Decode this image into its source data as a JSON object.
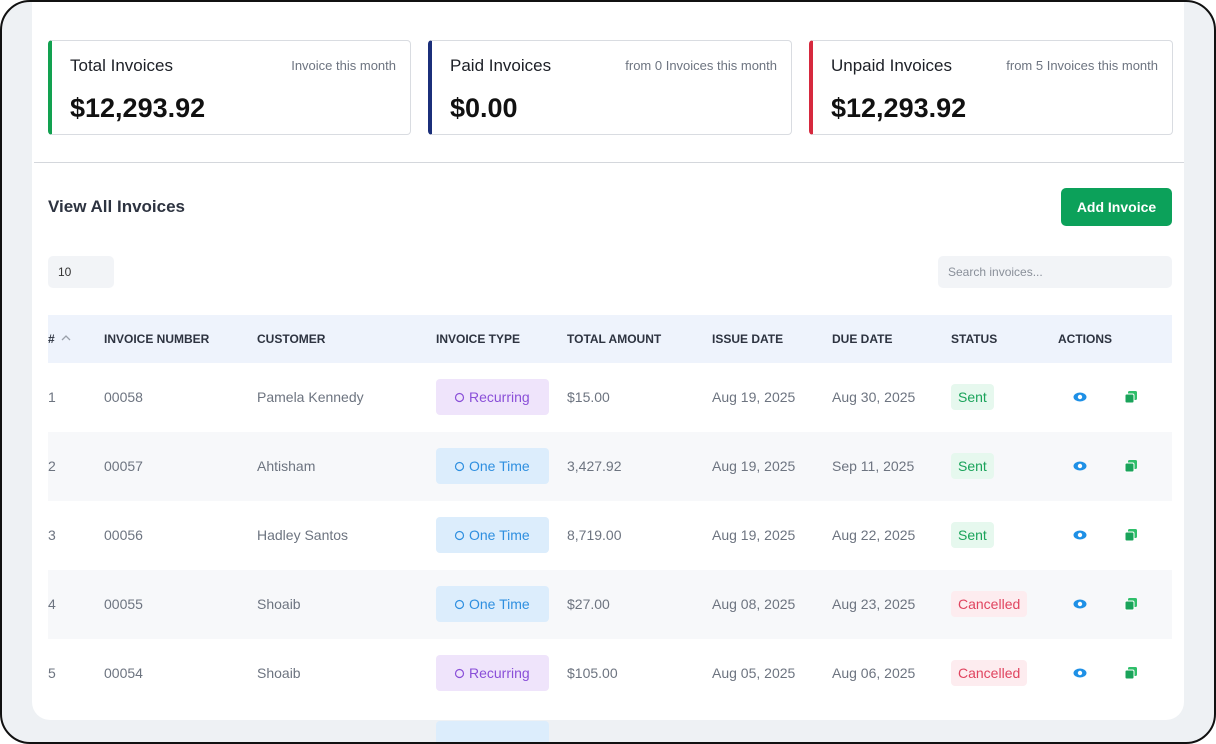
{
  "cards": [
    {
      "title": "Total Invoices",
      "note": "Invoice this month",
      "amount": "$12,293.92"
    },
    {
      "title": "Paid Invoices",
      "note": "from 0 Invoices this month",
      "amount": "$0.00"
    },
    {
      "title": "Unpaid Invoices",
      "note": "from 5 Invoices this month",
      "amount": "$12,293.92"
    }
  ],
  "section_title": "View All Invoices",
  "add_button": "Add Invoice",
  "page_size": "10",
  "search_placeholder": "Search invoices...",
  "table": {
    "headers": [
      "#",
      "INVOICE NUMBER",
      "CUSTOMER",
      "INVOICE TYPE",
      "TOTAL AMOUNT",
      "ISSUE DATE",
      "DUE DATE",
      "STATUS",
      "ACTIONS"
    ],
    "rows": [
      [
        "1",
        "00058",
        "Pamela Kennedy",
        "Recurring",
        "$15.00",
        "Aug 19, 2025",
        "Aug 30, 2025",
        "Sent"
      ],
      [
        "2",
        "00057",
        "Ahtisham",
        "One Time",
        "3,427.92",
        "Aug 19, 2025",
        "Sep 11, 2025",
        "Sent"
      ],
      [
        "3",
        "00056",
        "Hadley Santos",
        "One Time",
        "8,719.00",
        "Aug 19, 2025",
        "Aug 22, 2025",
        "Sent"
      ],
      [
        "4",
        "00055",
        "Shoaib",
        "One Time",
        "$27.00",
        "Aug 08, 2025",
        "Aug 23, 2025",
        "Cancelled"
      ],
      [
        "5",
        "00054",
        "Shoaib",
        "Recurring",
        "$105.00",
        "Aug 05, 2025",
        "Aug 06, 2025",
        "Cancelled"
      ]
    ]
  }
}
